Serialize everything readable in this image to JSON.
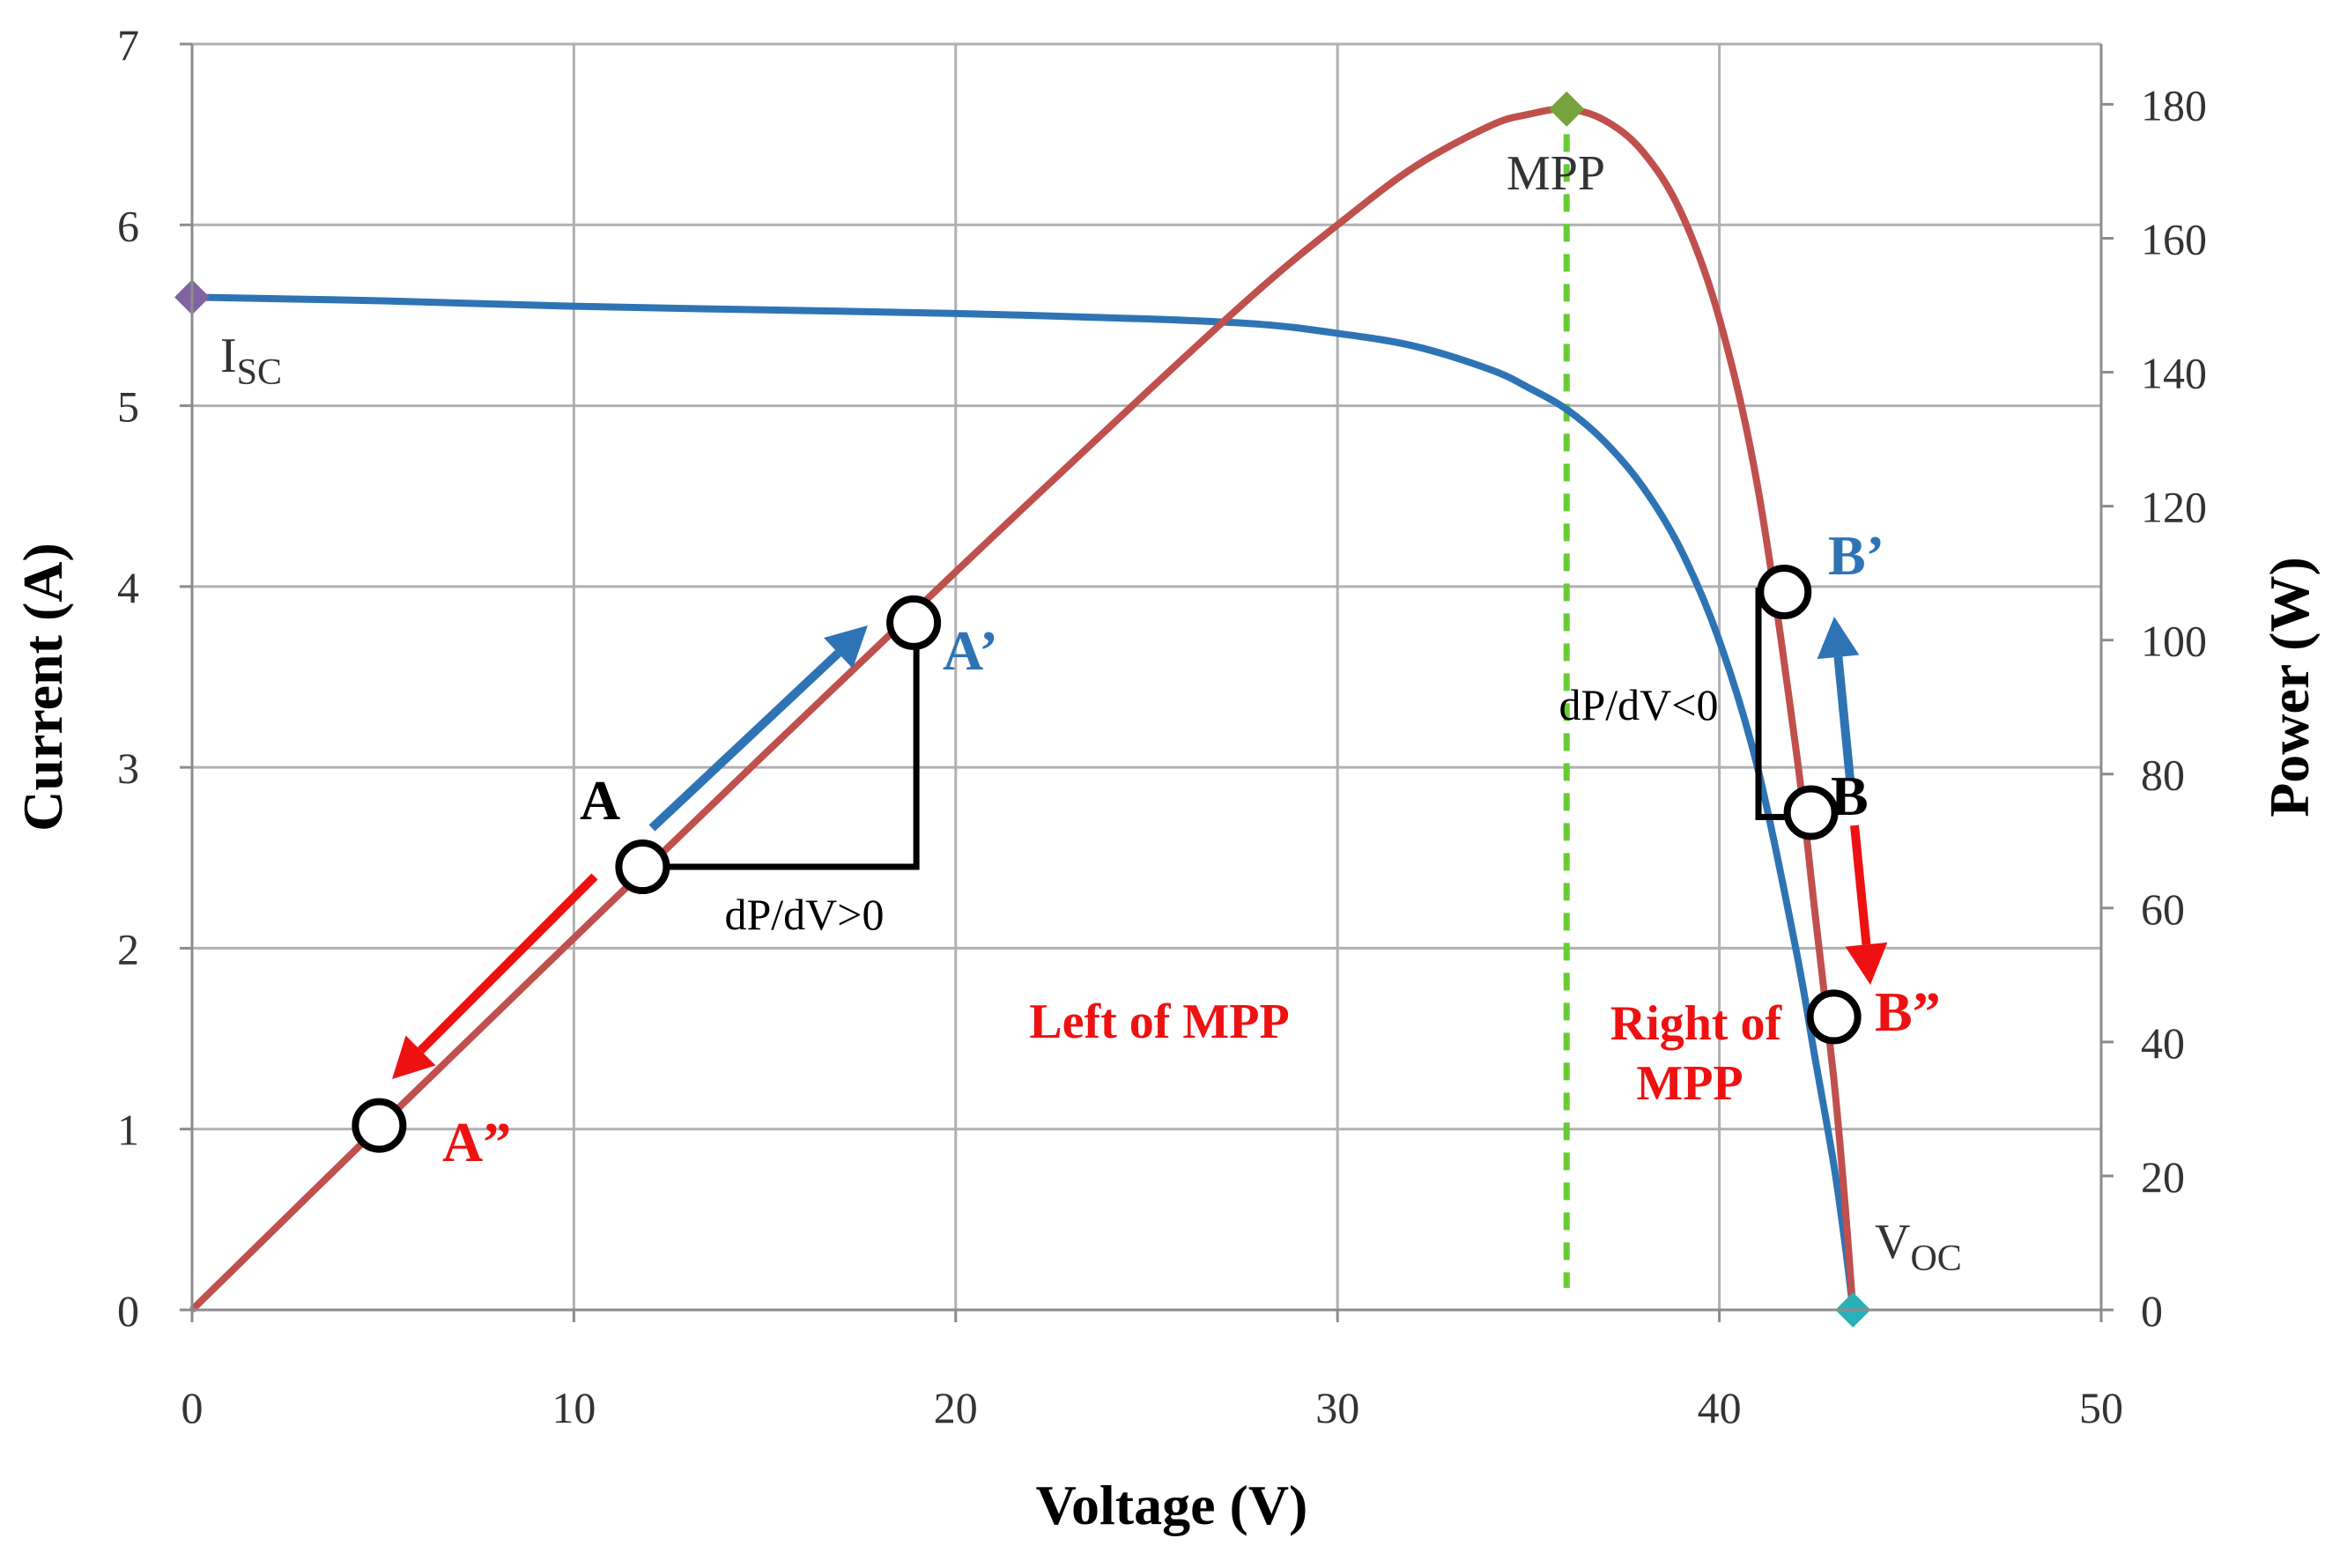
{
  "chart_data": {
    "type": "line",
    "title": "",
    "xlabel": "Voltage (V)",
    "ylabel_left": "Current (A)",
    "ylabel_right": "Power (W)",
    "xlim": [
      0,
      50
    ],
    "ylim_left": [
      0,
      7
    ],
    "ylim_right": [
      0,
      189
    ],
    "x_ticks": [
      0,
      10,
      20,
      30,
      40,
      50
    ],
    "y_left_ticks": [
      0,
      1,
      2,
      3,
      4,
      5,
      6,
      7
    ],
    "y_right_ticks": [
      0,
      20,
      40,
      60,
      80,
      100,
      120,
      140,
      160,
      180
    ],
    "grid": true,
    "series": [
      {
        "name": "Current",
        "axis": "left",
        "color": "#2e74b5",
        "x": [
          0,
          5,
          10,
          15,
          20,
          25,
          28,
          30,
          32,
          34,
          35,
          36,
          37,
          38,
          39,
          40,
          41,
          42,
          42.5,
          43,
          43.3,
          43.5
        ],
        "y": [
          5.6,
          5.58,
          5.55,
          5.53,
          5.51,
          5.48,
          5.45,
          5.4,
          5.33,
          5.2,
          5.1,
          4.98,
          4.8,
          4.55,
          4.2,
          3.7,
          3.0,
          2.0,
          1.4,
          0.8,
          0.35,
          0
        ]
      },
      {
        "name": "Power",
        "axis": "right",
        "color": "#c0504d",
        "x": [
          0,
          5,
          10,
          15,
          20,
          25,
          28,
          30,
          32,
          34,
          35,
          36,
          37,
          38,
          39,
          40,
          41,
          42,
          42.5,
          43,
          43.3,
          43.5
        ],
        "y": [
          0,
          27.9,
          55.5,
          83,
          110.2,
          137,
          152.6,
          162,
          170.6,
          176.8,
          178.5,
          179.3,
          177.6,
          172.9,
          163.8,
          148,
          123,
          84,
          59.5,
          34.4,
          15.2,
          0
        ]
      }
    ],
    "markers": [
      {
        "name": "I_SC",
        "x": 0,
        "y": 5.6,
        "axis": "left",
        "color": "#8064a2"
      },
      {
        "name": "MPP",
        "x": 36,
        "y": 179.3,
        "axis": "right",
        "color": "#77a33c"
      },
      {
        "name": "V_OC",
        "x": 43.5,
        "y": 0,
        "axis": "left",
        "color": "#2ab0b7"
      }
    ],
    "mpp_line": {
      "x": 36,
      "color": "#66cc33"
    },
    "points": [
      {
        "label": "A",
        "x": 11.8,
        "y_left": 2.45
      },
      {
        "label": "A’",
        "x": 18.9,
        "y_left": 3.8
      },
      {
        "label": "A”",
        "x": 4.9,
        "y_left": 1.02
      },
      {
        "label": "B",
        "x": 42.4,
        "y_left": 2.75
      },
      {
        "label": "B’",
        "x": 41.7,
        "y_left": 3.97
      },
      {
        "label": "B”",
        "x": 43.0,
        "y_left": 1.62
      }
    ],
    "annotations": {
      "isc": "I",
      "isc_sub": "SC",
      "voc": "V",
      "voc_sub": "OC",
      "mpp": "MPP",
      "dp_pos": "dP/dV>0",
      "dp_neg": "dP/dV<0",
      "left_region": "Left of MPP",
      "right_region_1": "Right of",
      "right_region_2": "MPP"
    },
    "colors": {
      "grid": "#b0b0b0",
      "black": "#000000",
      "blue": "#2e74b5",
      "label_blue": "#2e74b5",
      "red": "#ee1111",
      "label_red": "#ee1111"
    }
  }
}
